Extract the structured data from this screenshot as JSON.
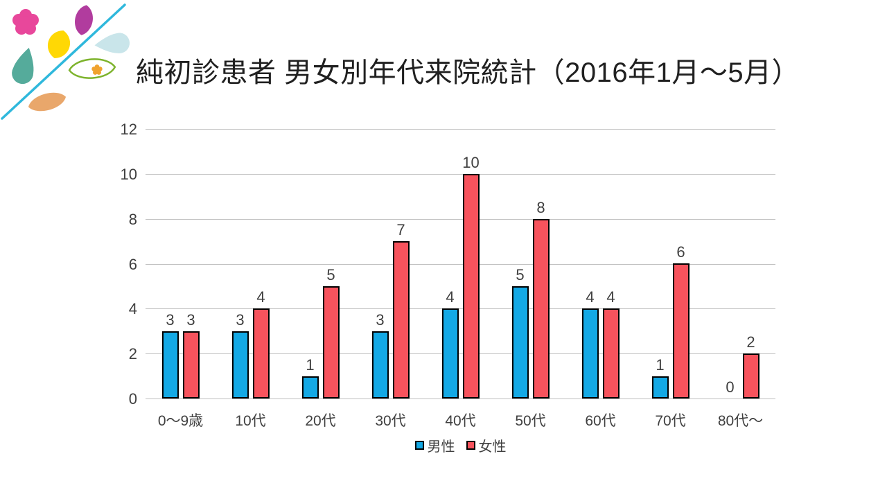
{
  "title": "純初診患者 男女別年代来院統計（2016年1月～5月）",
  "chart_data": {
    "type": "bar",
    "title": "純初診患者 男女別年代来院統計（2016年1月～5月）",
    "categories": [
      "0～9歳",
      "10代",
      "20代",
      "30代",
      "40代",
      "50代",
      "60代",
      "70代",
      "80代～"
    ],
    "series": [
      {
        "key": "male",
        "name": "男性",
        "color": "#14A9E5",
        "values": [
          3,
          3,
          1,
          3,
          4,
          5,
          4,
          1,
          0
        ]
      },
      {
        "key": "female",
        "name": "女性",
        "color": "#F7535D",
        "values": [
          3,
          4,
          5,
          7,
          10,
          8,
          4,
          6,
          2
        ]
      }
    ],
    "xlabel": "",
    "ylabel": "",
    "ylim": [
      0,
      12
    ],
    "ytick": 2,
    "grid": "horizontal-only",
    "gridline_color": "#C0C0C0",
    "bar_outline_color": "#000000",
    "axis_label_color": "#3F3F3F",
    "legend_position": "bottom",
    "data_labels": true
  },
  "logo": {
    "line": "#2FB8DC",
    "pink_flower": "#E8479B",
    "magenta_leaf": "#B13C9E",
    "yellow_leaf": "#FFD805",
    "teal_drop": "#55AB9B",
    "light_blue_drop": "#C9E5EA",
    "green_leaf_outline": "#7DB32C",
    "orange_flower": "#F0A32F",
    "orange_leaf": "#E9A76B"
  }
}
